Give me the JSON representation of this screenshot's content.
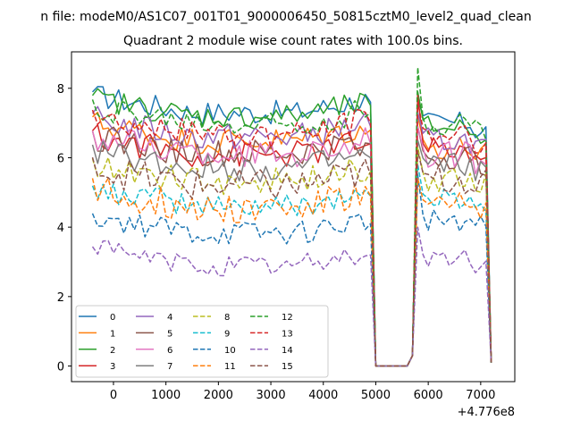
{
  "chart_data": {
    "type": "line",
    "suptitle": "n file: modeM0/AS1C07_001T01_9000006450_50815cztM0_level2_quad_clean",
    "title": "Quadrant 2 module wise count rates with 100.0s bins.",
    "xlabel": "",
    "ylabel": "",
    "x_offset_label": "+4.776e8",
    "xlim": [
      -800,
      7650
    ],
    "ylim": [
      -0.45,
      9.05
    ],
    "xticks": [
      0,
      1000,
      2000,
      3000,
      4000,
      5000,
      6000,
      7000
    ],
    "xtick_labels": [
      "0",
      "1000",
      "2000",
      "3000",
      "4000",
      "5000",
      "6000",
      "7000"
    ],
    "yticks": [
      0,
      2,
      4,
      6,
      8
    ],
    "ytick_labels": [
      "0",
      "2",
      "4",
      "6",
      "8"
    ],
    "grid": false,
    "legend_position": "lower-left",
    "legend_columns": 4,
    "x": [
      -400,
      -300,
      -200,
      -100,
      0,
      100,
      200,
      300,
      400,
      500,
      600,
      700,
      800,
      900,
      1000,
      1100,
      1200,
      1300,
      1400,
      1500,
      1600,
      1700,
      1800,
      1900,
      2000,
      2100,
      2200,
      2300,
      2400,
      2500,
      2600,
      2700,
      2800,
      2900,
      3000,
      3100,
      3200,
      3300,
      3400,
      3500,
      3600,
      3700,
      3800,
      3900,
      4000,
      4100,
      4200,
      4300,
      4400,
      4500,
      4600,
      4700,
      4800,
      4900,
      5000,
      5100,
      5200,
      5300,
      5400,
      5500,
      5600,
      5700,
      5800,
      5900,
      6000,
      6100,
      6200,
      6300,
      6400,
      6500,
      6600,
      6700,
      6800,
      6900,
      7000,
      7100,
      7200
    ],
    "series": [
      {
        "name": "0",
        "color": "#1f77b4",
        "dashed": false,
        "level": 7.3,
        "amp": 0.22,
        "gap_level": 7.0,
        "peak": 7.7
      },
      {
        "name": "1",
        "color": "#ff7f0e",
        "dashed": false,
        "level": 6.5,
        "amp": 0.25,
        "gap_level": 6.3,
        "peak": 7.2
      },
      {
        "name": "2",
        "color": "#2ca02c",
        "dashed": false,
        "level": 7.2,
        "amp": 0.22,
        "gap_level": 6.9,
        "peak": 7.9
      },
      {
        "name": "3",
        "color": "#d62728",
        "dashed": false,
        "level": 6.1,
        "amp": 0.25,
        "gap_level": 6.2,
        "peak": 7.8
      },
      {
        "name": "4",
        "color": "#9467bd",
        "dashed": false,
        "level": 6.6,
        "amp": 0.25,
        "gap_level": 6.5,
        "peak": 7.3
      },
      {
        "name": "5",
        "color": "#8c564b",
        "dashed": false,
        "level": 6.1,
        "amp": 0.25,
        "gap_level": 6.0,
        "peak": 6.9
      },
      {
        "name": "6",
        "color": "#e377c2",
        "dashed": false,
        "level": 6.1,
        "amp": 0.25,
        "gap_level": 6.1,
        "peak": 6.9
      },
      {
        "name": "7",
        "color": "#7f7f7f",
        "dashed": false,
        "level": 5.7,
        "amp": 0.25,
        "gap_level": 5.8,
        "peak": 6.5
      },
      {
        "name": "8",
        "color": "#bcbd22",
        "dashed": true,
        "level": 5.3,
        "amp": 0.25,
        "gap_level": 5.4,
        "peak": 6.3
      },
      {
        "name": "9",
        "color": "#17becf",
        "dashed": true,
        "level": 4.6,
        "amp": 0.22,
        "gap_level": 4.8,
        "peak": 5.8
      },
      {
        "name": "10",
        "color": "#1f77b4",
        "dashed": true,
        "level": 3.8,
        "amp": 0.22,
        "gap_level": 4.2,
        "peak": 5.5
      },
      {
        "name": "11",
        "color": "#ff7f0e",
        "dashed": true,
        "level": 4.6,
        "amp": 0.3,
        "gap_level": 4.6,
        "peak": 5.4
      },
      {
        "name": "12",
        "color": "#2ca02c",
        "dashed": true,
        "level": 7.0,
        "amp": 0.25,
        "gap_level": 7.0,
        "peak": 8.6
      },
      {
        "name": "13",
        "color": "#d62728",
        "dashed": true,
        "level": 6.7,
        "amp": 0.25,
        "gap_level": 6.7,
        "peak": 7.6
      },
      {
        "name": "14",
        "color": "#9467bd",
        "dashed": true,
        "level": 2.9,
        "amp": 0.2,
        "gap_level": 3.1,
        "peak": 4.0
      },
      {
        "name": "15",
        "color": "#8c564b",
        "dashed": true,
        "level": 5.2,
        "amp": 0.3,
        "gap_level": 5.4,
        "peak": 6.2
      }
    ]
  }
}
